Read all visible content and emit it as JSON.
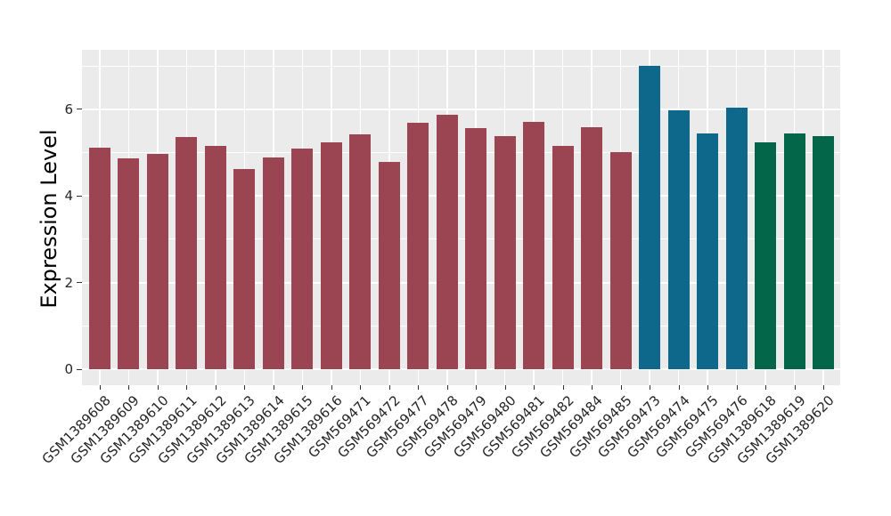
{
  "chart_data": {
    "type": "bar",
    "title": "",
    "xlabel": "",
    "ylabel": "Expression Level",
    "categories": [
      "GSM1389608",
      "GSM1389609",
      "GSM1389610",
      "GSM1389611",
      "GSM1389612",
      "GSM1389613",
      "GSM1389614",
      "GSM1389615",
      "GSM1389616",
      "GSM569471",
      "GSM569472",
      "GSM569477",
      "GSM569478",
      "GSM569479",
      "GSM569480",
      "GSM569481",
      "GSM569482",
      "GSM569484",
      "GSM569485",
      "GSM569473",
      "GSM569474",
      "GSM569475",
      "GSM569476",
      "GSM1389618",
      "GSM1389619",
      "GSM1389620"
    ],
    "values": [
      5.12,
      4.87,
      4.97,
      5.36,
      5.16,
      4.62,
      4.89,
      5.09,
      5.24,
      5.42,
      4.78,
      5.68,
      5.87,
      5.56,
      5.38,
      5.7,
      5.16,
      5.58,
      5.02,
      7.01,
      5.97,
      5.44,
      6.04,
      5.23,
      5.44,
      5.38
    ],
    "bar_colors": [
      "#9b4452",
      "#9b4452",
      "#9b4452",
      "#9b4452",
      "#9b4452",
      "#9b4452",
      "#9b4452",
      "#9b4452",
      "#9b4452",
      "#9b4452",
      "#9b4452",
      "#9b4452",
      "#9b4452",
      "#9b4452",
      "#9b4452",
      "#9b4452",
      "#9b4452",
      "#9b4452",
      "#9b4452",
      "#0d688c",
      "#0d688c",
      "#0d688c",
      "#0d688c",
      "#036648",
      "#036648",
      "#036648"
    ],
    "group_colors": {
      "maroon": "#9b4452",
      "teal": "#0d688c",
      "green": "#036648"
    },
    "yticks": [
      0,
      2,
      4,
      6
    ],
    "yticks_minor": [
      1,
      3,
      5,
      7
    ],
    "ylim": [
      -0.37,
      7.37
    ],
    "grid": true,
    "legend": false,
    "x_tick_rotation_deg": 45,
    "panel_background": "#ebebeb",
    "gridline_color": "#ffffff",
    "tick_color": "#333333",
    "axis_text_color": "#262626"
  }
}
